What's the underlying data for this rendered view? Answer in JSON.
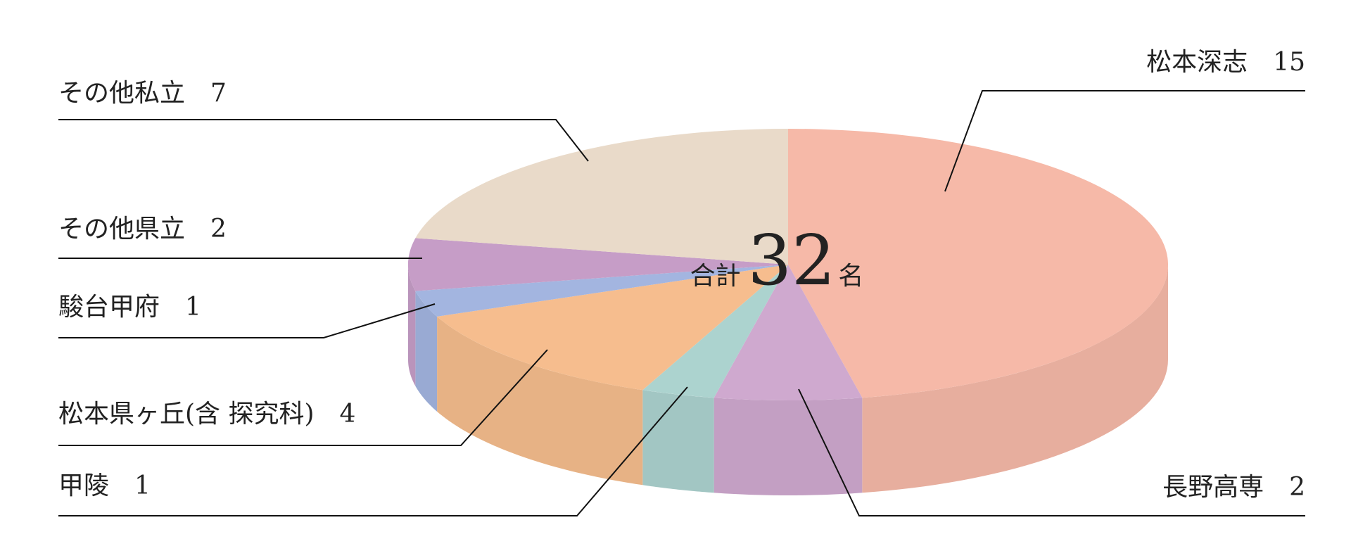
{
  "chart_data": {
    "type": "pie3d",
    "categories": [
      "松本深志",
      "長野高専",
      "甲陵",
      "松本県ヶ丘(含 探究科)",
      "駿台甲府",
      "その他県立",
      "その他私立"
    ],
    "values": [
      15,
      2,
      1,
      4,
      1,
      2,
      7
    ],
    "colors": [
      "#f6b9a8",
      "#cfa9cf",
      "#acd3cf",
      "#f6bd8e",
      "#a3b5e0",
      "#c69dc7",
      "#e9dac9"
    ],
    "total": 32,
    "total_prefix": "合計",
    "total_suffix": "名"
  }
}
